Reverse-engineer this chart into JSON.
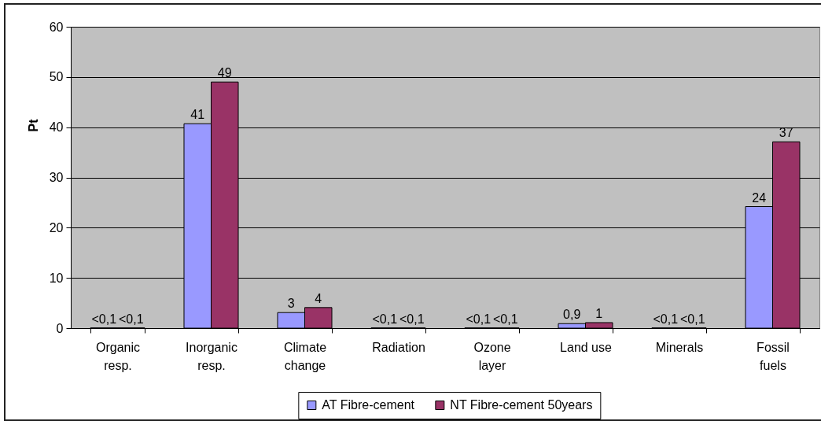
{
  "chart_data": {
    "type": "bar",
    "ylabel": "Pt",
    "categories": [
      "Organic resp.",
      "Inorganic resp.",
      "Climate change",
      "Radiation",
      "Ozone layer",
      "Land use",
      "Minerals",
      "Fossil fuels"
    ],
    "series": [
      {
        "name": "AT Fibre-cement",
        "color": "#9999ff",
        "values": [
          0.05,
          40.7,
          3.1,
          0.05,
          0.05,
          0.9,
          0.05,
          24.2
        ],
        "value_labels": [
          "<0,1",
          "41",
          "3",
          "<0,1",
          "<0,1",
          "0,9",
          "<0,1",
          "24"
        ]
      },
      {
        "name": "NT Fibre-cement 50years",
        "color": "#993366",
        "values": [
          0.05,
          49.0,
          4.1,
          0.05,
          0.05,
          1.1,
          0.05,
          37.1
        ],
        "value_labels": [
          "<0,1",
          "49",
          "4",
          "<0,1",
          "<0,1",
          "1",
          "<0,1",
          "37"
        ]
      }
    ],
    "ylim": [
      0,
      60
    ],
    "yticks": [
      0,
      10,
      20,
      30,
      40,
      50,
      60
    ],
    "grid": "y",
    "legend": "bottom"
  }
}
